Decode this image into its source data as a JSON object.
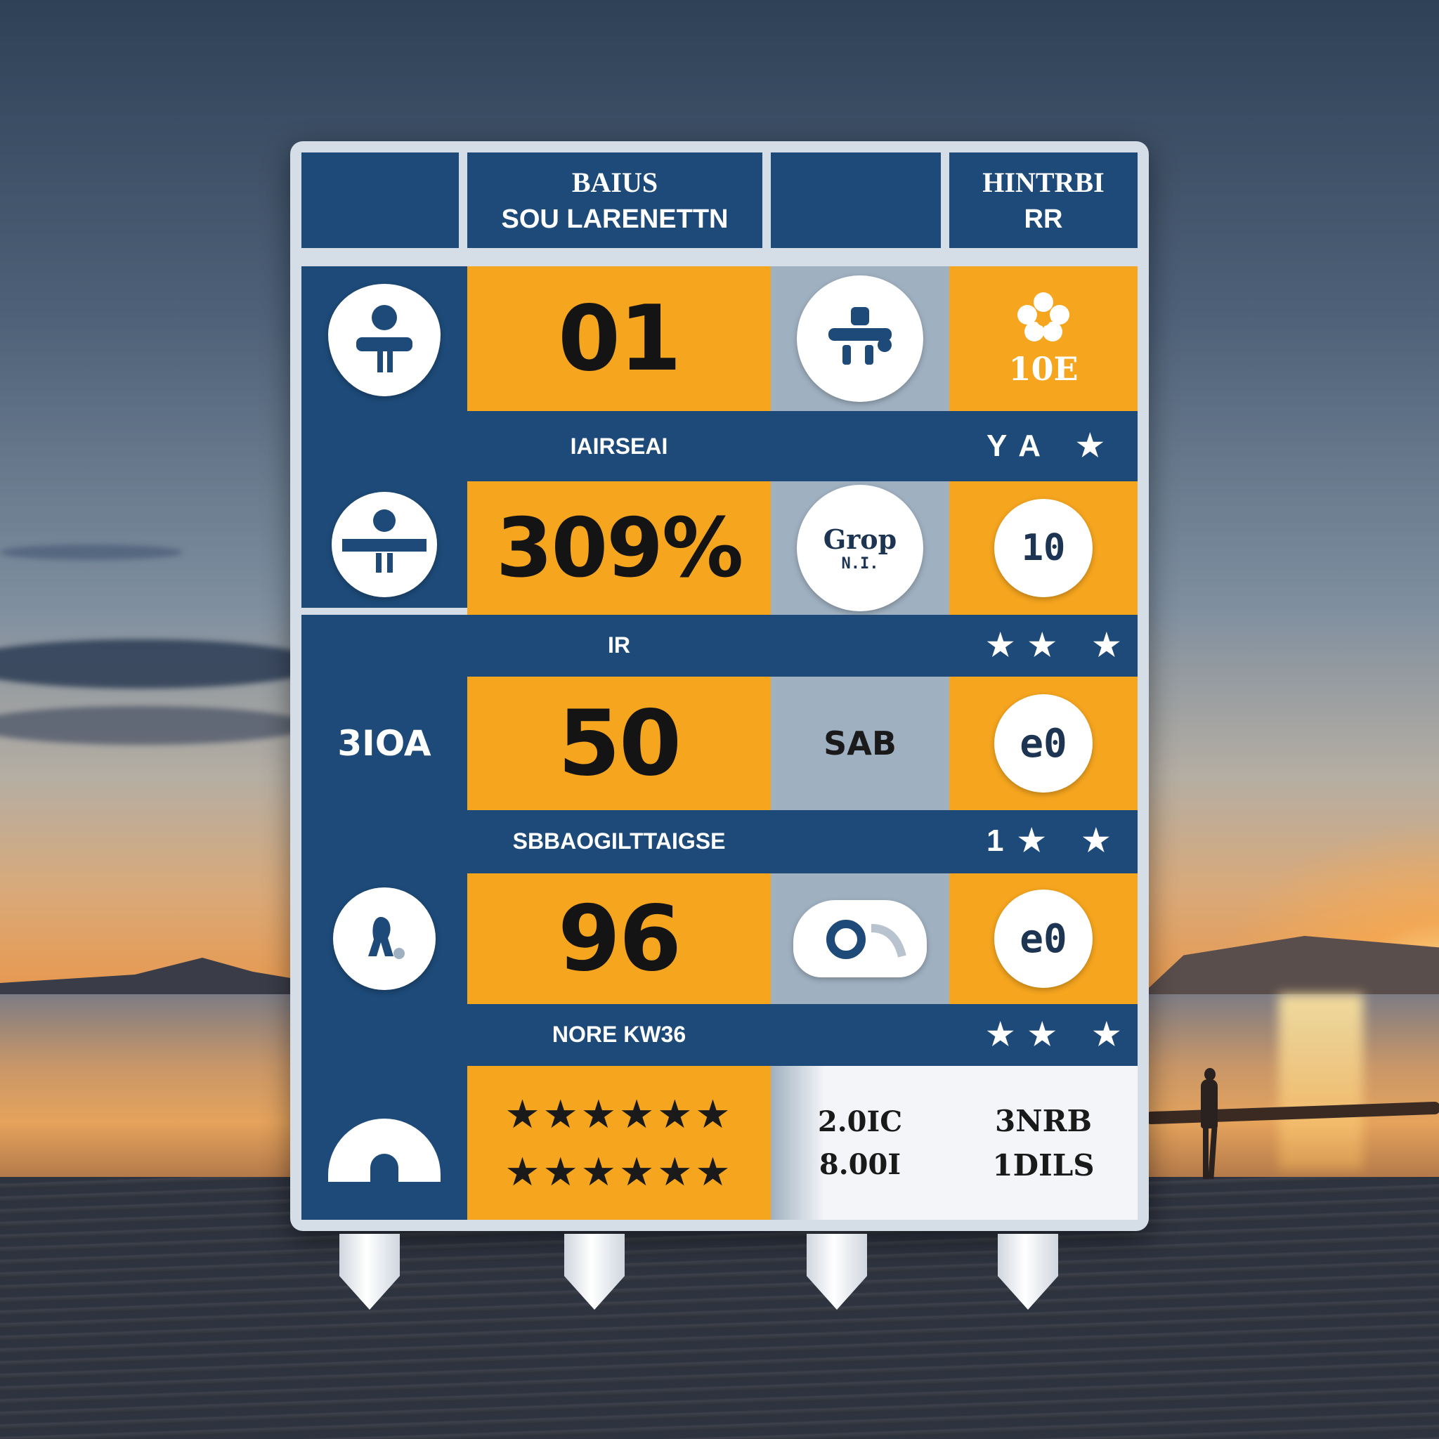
{
  "header": {
    "col1_line1": "BAIUS",
    "col1_line2": "SOU LARENETTN",
    "col3_line1": "HINTRBI",
    "col3_line2": "RR"
  },
  "rows": [
    {
      "number": "01",
      "right_icon_text": "10E",
      "band_label": "IAIRSEAI",
      "band_stars": "YA ★"
    },
    {
      "number": "309%",
      "gray_circle_text": "Grop",
      "gray_circle_sub": "N.I.",
      "right_circle_text": "10",
      "band_label": "IR",
      "band_stars": "★★ ★"
    },
    {
      "left_text": "3IOA",
      "number": "50",
      "gray_text": "SAB",
      "right_circle_text": "e0",
      "band_label": "SBBAOGILTTAIGSE",
      "band_stars": "1★ ★"
    },
    {
      "number": "96",
      "right_circle_text": "e0",
      "band_label": "NORE KW36",
      "band_stars": "★★ ★"
    }
  ],
  "footer": {
    "stars_line1": "★★★★★★",
    "stars_line2": "★★★★★★",
    "gray_line1": "2.0IC",
    "gray_line2": "8.00I",
    "right_line1": "3NRB",
    "right_line2": "1DILS"
  },
  "colors": {
    "blue": "#1d4a78",
    "orange": "#f5a51e",
    "gray": "#9fb0c0"
  }
}
